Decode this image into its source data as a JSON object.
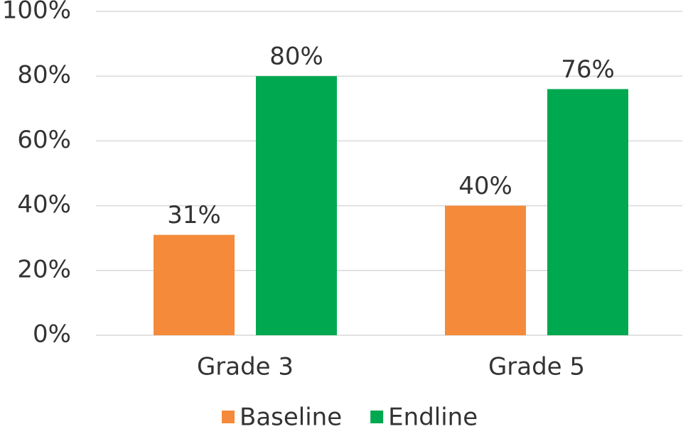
{
  "chart_data": {
    "type": "bar",
    "categories": [
      "Grade 3",
      "Grade 5"
    ],
    "series": [
      {
        "name": "Baseline",
        "color": "#f58b3a",
        "values": [
          31,
          40
        ],
        "value_labels": [
          "31%",
          "40%"
        ]
      },
      {
        "name": "Endline",
        "color": "#00a850",
        "values": [
          80,
          76
        ],
        "value_labels": [
          "80%",
          "76%"
        ]
      }
    ],
    "ylim": [
      0,
      100
    ],
    "yticks": [
      {
        "value": 0,
        "label": "0%"
      },
      {
        "value": 20,
        "label": "20%"
      },
      {
        "value": 40,
        "label": "40%"
      },
      {
        "value": 60,
        "label": "60%"
      },
      {
        "value": 80,
        "label": "80%"
      },
      {
        "value": 100,
        "label": "100%"
      }
    ],
    "grid": true,
    "legend": "bottom"
  }
}
